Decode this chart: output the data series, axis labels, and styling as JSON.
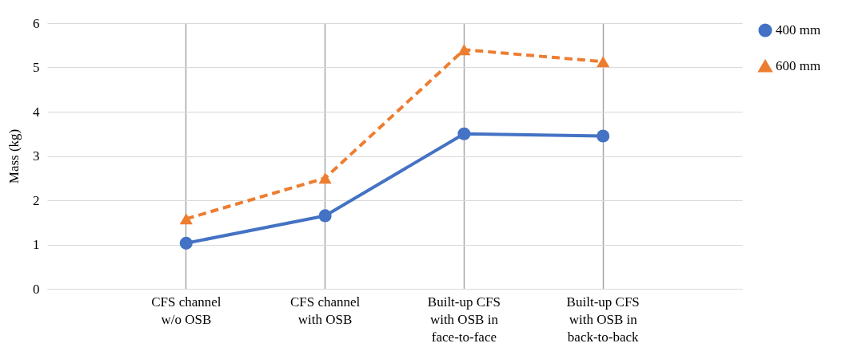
{
  "chart_data": {
    "type": "line",
    "ylabel": "Mass (kg)",
    "categories": [
      "CFS channel\nw/o OSB",
      "CFS channel\nwith OSB",
      "Built-up CFS\nwith OSB in\nface-to-face",
      "Built-up CFS\nwith OSB in\nback-to-back"
    ],
    "series": [
      {
        "name": "400 mm",
        "color": "#4472c4",
        "values": [
          1.03,
          1.65,
          3.5,
          3.45
        ],
        "marker": "circle",
        "line_style": "solid"
      },
      {
        "name": "600 mm",
        "color": "#ed7d31",
        "values": [
          1.58,
          2.5,
          5.4,
          5.13
        ],
        "marker": "triangle",
        "line_style": "dashed"
      }
    ],
    "ylim": [
      0,
      6
    ],
    "yticks": [
      0,
      1,
      2,
      3,
      4,
      5,
      6
    ],
    "grid": true,
    "legend": "top right"
  }
}
